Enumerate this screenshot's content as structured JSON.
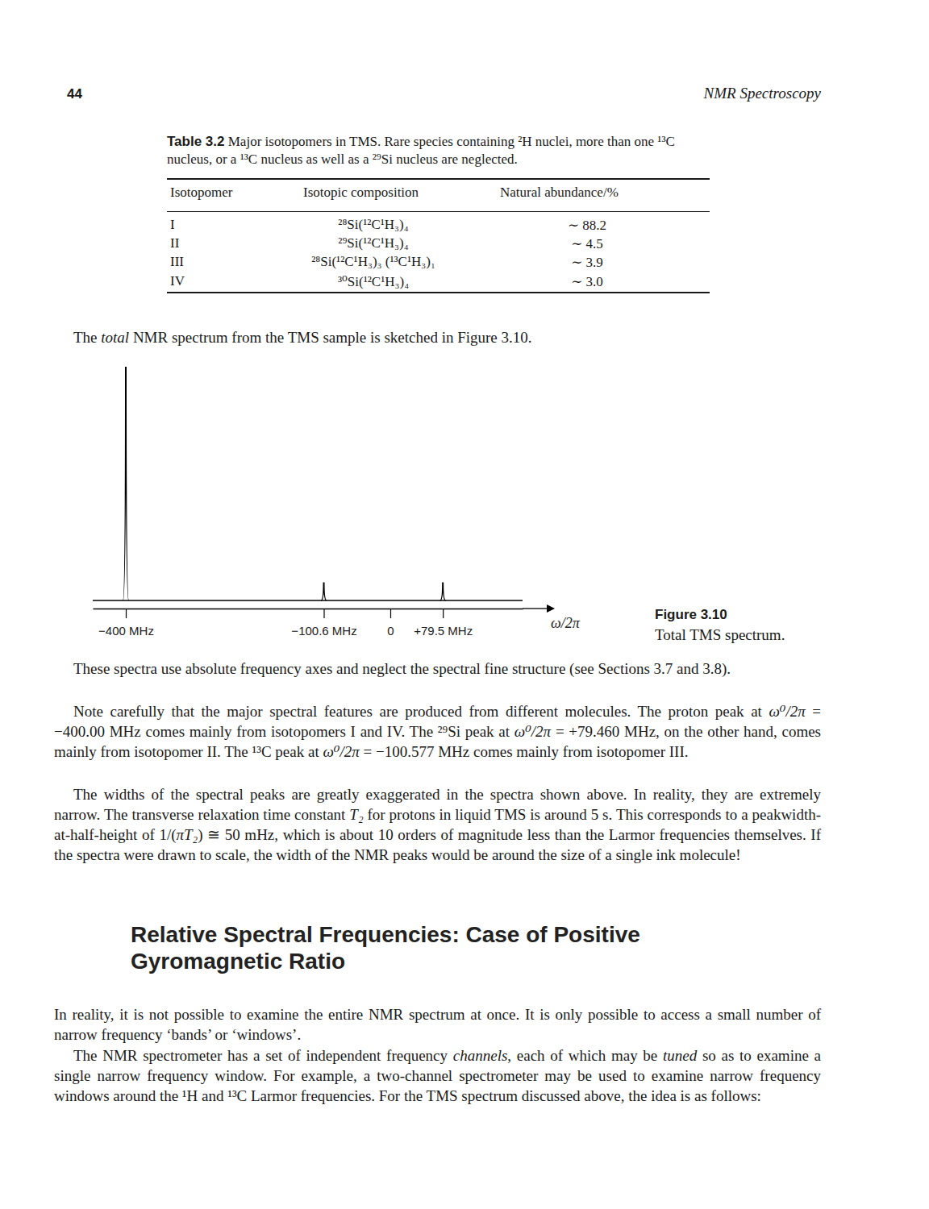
{
  "header": {
    "page_number": "44",
    "running_title": "NMR Spectroscopy"
  },
  "table": {
    "label": "Table 3.2",
    "caption": "Major isotopomers in TMS. Rare species containing ²H nuclei, more than one ¹³C nucleus, or a ¹³C nucleus as well as a ²⁹Si nucleus are neglected.",
    "columns": [
      "Isotopomer",
      "Isotopic composition",
      "Natural abundance/%"
    ],
    "rows": [
      [
        "I",
        "²⁸Si(¹²C¹H₃)₄",
        "∼ 88.2"
      ],
      [
        "II",
        "²⁹Si(¹²C¹H₃)₄",
        "∼ 4.5"
      ],
      [
        "III",
        "²⁸Si(¹²C¹H₃)₃ (¹³C¹H₃)₁",
        "∼ 3.9"
      ],
      [
        "IV",
        "³⁰Si(¹²C¹H₃)₄",
        "∼ 3.0"
      ]
    ]
  },
  "paragraphs": [
    {
      "runs": [
        {
          "text": "The "
        },
        {
          "text": "total",
          "italic": true
        },
        {
          "text": " NMR spectrum from the TMS sample is sketched in Figure 3.10."
        }
      ]
    },
    {
      "runs": [
        {
          "text": "These spectra use absolute frequency axes and neglect the spectral fine structure (see Sections 3.7 and 3.8)."
        }
      ]
    },
    {
      "runs": [
        {
          "text": "Note carefully that the major spectral features are produced from different molecules. The proton peak at "
        },
        {
          "text": "ω⁰/2π",
          "italic": true
        },
        {
          "text": " = −400.00 MHz comes mainly from isotopomers I and IV. The ²⁹Si peak at "
        },
        {
          "text": "ω⁰/2π",
          "italic": true
        },
        {
          "text": " = +79.460 MHz, on the other hand, comes mainly from isotopomer II. The ¹³C peak at "
        },
        {
          "text": "ω⁰/2π",
          "italic": true
        },
        {
          "text": " = −100.577 MHz comes mainly from isotopomer III."
        }
      ]
    },
    {
      "runs": [
        {
          "text": "The widths of the spectral peaks are greatly exaggerated in the spectra shown above. In reality, they are extremely narrow. The transverse relaxation time constant "
        },
        {
          "text": "T₂",
          "italic": true
        },
        {
          "text": " for protons in liquid TMS is around 5 s. This corresponds to a peakwidth-at-half-height of 1/("
        },
        {
          "text": "πT₂",
          "italic": true
        },
        {
          "text": ") ≅ 50 mHz, which is about 10 orders of magnitude less than the Larmor frequencies themselves. If the spectra were drawn to scale, the width of the NMR peaks would be around the size of a single ink molecule!"
        }
      ]
    },
    {
      "runs": [
        {
          "text": "In reality, it is not possible to examine the entire NMR spectrum at once. It is only possible to access a small number of narrow frequency ‘bands’ or ‘windows’."
        }
      ]
    },
    {
      "runs": [
        {
          "text": "The NMR spectrometer has a set of independent frequency "
        },
        {
          "text": "channels",
          "italic": true
        },
        {
          "text": ", each of which may be "
        },
        {
          "text": "tuned",
          "italic": true
        },
        {
          "text": " so as to examine a single narrow frequency window. For example, a two-channel spectrometer may be used to examine narrow frequency windows around the ¹H and ¹³C Larmor frequencies. For the TMS spectrum discussed above, the idea is as follows:"
        }
      ]
    }
  ],
  "heading": "Relative Spectral Frequencies: Case of Positive Gyromagnetic Ratio",
  "figure": {
    "label": "Figure 3.10",
    "caption": "Total TMS spectrum."
  },
  "chart_data": {
    "type": "spectrum",
    "x": [
      -400,
      -100.577,
      79.46
    ],
    "values": [
      100,
      7.5,
      7.5
    ],
    "xlim": [
      -450,
      200
    ],
    "ylim": [
      0,
      100
    ],
    "xticks": [
      {
        "value": -400,
        "label": "−400 MHz"
      },
      {
        "value": -100.6,
        "label": "−100.6 MHz"
      },
      0,
      {
        "value": 79.5,
        "label": "+79.5 MHz"
      }
    ],
    "x_label": "ω/2π",
    "tick_labels": "x"
  }
}
